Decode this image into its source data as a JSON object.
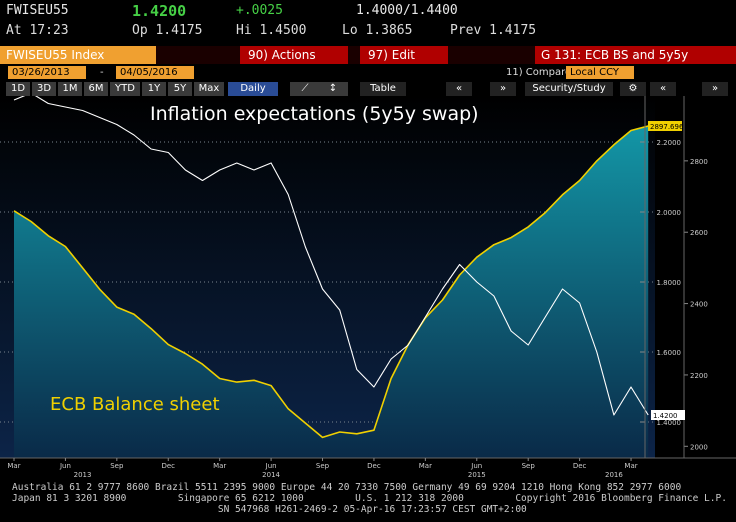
{
  "header": {
    "ticker": "FWISEU55",
    "last": "1.4200",
    "change": "+.0025",
    "bid_ask": "1.4000/1.4400",
    "time": "At 17:23",
    "open": "Op 1.4175",
    "high": "Hi 1.4500",
    "low": "Lo 1.3865",
    "prev": "Prev 1.4175",
    "security": "FWISEU55 Index",
    "actions": "90) Actions",
    "edit": "97) Edit",
    "graph": "G 131: ECB BS and 5y5y",
    "start_date": "03/26/2013",
    "date_sep": "-",
    "end_date": "04/05/2016",
    "compare": "11) Compare",
    "currency": "Local CCY",
    "periods": [
      "1D",
      "3D",
      "1M",
      "6M",
      "YTD",
      "1Y",
      "5Y",
      "Max"
    ],
    "frequency": "Daily",
    "table": "Table",
    "study": "Security/Study"
  },
  "chart_data": {
    "type": "line",
    "x": [
      "2013-03",
      "2013-04",
      "2013-05",
      "2013-06",
      "2013-07",
      "2013-08",
      "2013-09",
      "2013-10",
      "2013-11",
      "2013-12",
      "2014-01",
      "2014-02",
      "2014-03",
      "2014-04",
      "2014-05",
      "2014-06",
      "2014-07",
      "2014-08",
      "2014-09",
      "2014-10",
      "2014-11",
      "2014-12",
      "2015-01",
      "2015-02",
      "2015-03",
      "2015-04",
      "2015-05",
      "2015-06",
      "2015-07",
      "2015-08",
      "2015-09",
      "2015-10",
      "2015-11",
      "2015-12",
      "2016-01",
      "2016-02",
      "2016-03",
      "2016-04"
    ],
    "series": [
      {
        "name": "Inflation expectations (5y5y swap)",
        "color": "#ffffff",
        "axis": "y",
        "last_value_label": "1.4200",
        "values": [
          2.32,
          2.34,
          2.31,
          2.3,
          2.29,
          2.27,
          2.25,
          2.22,
          2.18,
          2.17,
          2.12,
          2.09,
          2.12,
          2.14,
          2.12,
          2.14,
          2.05,
          1.9,
          1.78,
          1.72,
          1.55,
          1.5,
          1.58,
          1.62,
          1.7,
          1.78,
          1.85,
          1.8,
          1.76,
          1.66,
          1.62,
          1.7,
          1.78,
          1.74,
          1.6,
          1.42,
          1.5,
          1.42
        ]
      },
      {
        "name": "ECB Balance sheet",
        "color": "#f0d000",
        "axis": "y2",
        "last_value_label": "2897.696",
        "values": [
          2660,
          2630,
          2590,
          2560,
          2500,
          2440,
          2390,
          2370,
          2330,
          2285,
          2260,
          2230,
          2190,
          2180,
          2185,
          2170,
          2105,
          2065,
          2025,
          2040,
          2035,
          2045,
          2190,
          2285,
          2360,
          2410,
          2480,
          2530,
          2565,
          2585,
          2615,
          2655,
          2705,
          2745,
          2800,
          2845,
          2885,
          2897.696
        ]
      }
    ],
    "ylim": [
      1.3,
      2.35
    ],
    "yticks": [
      {
        "value": 1.4,
        "label": "1.4000"
      },
      {
        "value": 1.6,
        "label": "1.6000"
      },
      {
        "value": 1.8,
        "label": "1.8000"
      },
      {
        "value": 2.0,
        "label": "2.0000"
      },
      {
        "value": 2.2,
        "label": "2.2000"
      }
    ],
    "y2lim": [
      1970,
      3000
    ],
    "y2ticks": [
      2000,
      2200,
      2400,
      2600,
      2800
    ],
    "xticks": [
      {
        "value": "2013-03",
        "label": "Mar"
      },
      {
        "value": "2013-06",
        "label": "Jun"
      },
      {
        "value": "2013-09",
        "label": "Sep"
      },
      {
        "value": "2013-12",
        "label": "Dec"
      },
      {
        "value": "2014-03",
        "label": "Mar"
      },
      {
        "value": "2014-06",
        "label": "Jun"
      },
      {
        "value": "2014-09",
        "label": "Sep"
      },
      {
        "value": "2014-12",
        "label": "Dec"
      },
      {
        "value": "2015-03",
        "label": "Mar"
      },
      {
        "value": "2015-06",
        "label": "Jun"
      },
      {
        "value": "2015-09",
        "label": "Sep"
      },
      {
        "value": "2015-12",
        "label": "Dec"
      },
      {
        "value": "2016-03",
        "label": "Mar"
      }
    ],
    "year_labels": [
      {
        "value": "2013-07",
        "label": "2013"
      },
      {
        "value": "2014-06",
        "label": "2014"
      },
      {
        "value": "2015-06",
        "label": "2015"
      },
      {
        "value": "2016-02",
        "label": "2016"
      }
    ],
    "grid": true
  },
  "footer": [
    "Australia 61 2 9777 8600 Brazil 5511 2395 9000 Europe 44 20 7330 7500 Germany 49 69 9204 1210 Hong Kong 852 2977 6000",
    "Japan 81 3 3201 8900         Singapore 65 6212 1000         U.S. 1 212 318 2000         Copyright 2016 Bloomberg Finance L.P.",
    "                                    SN 547968 H261-2469-2 05-Apr-16 17:23:57 CEST GMT+2:00"
  ]
}
